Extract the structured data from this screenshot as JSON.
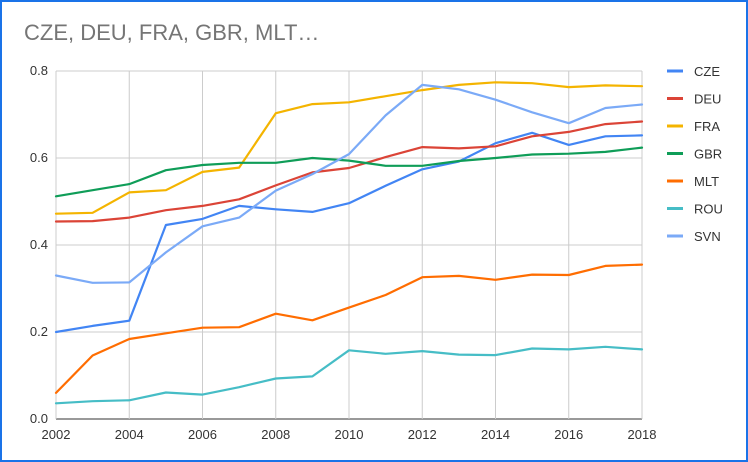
{
  "chart_data": {
    "type": "line",
    "title": "CZE, DEU, FRA, GBR, MLT…",
    "xlabel": "",
    "ylabel": "",
    "xlim": [
      2002,
      2018
    ],
    "ylim": [
      0,
      0.8
    ],
    "x_ticks": [
      "2002",
      "2004",
      "2006",
      "2008",
      "2010",
      "2012",
      "2014",
      "2016",
      "2018"
    ],
    "y_ticks": [
      "0.0",
      "0.2",
      "0.4",
      "0.6",
      "0.8"
    ],
    "grid": true,
    "legend_position": "right",
    "x": [
      2002,
      2003,
      2004,
      2005,
      2006,
      2007,
      2008,
      2009,
      2010,
      2011,
      2012,
      2013,
      2014,
      2015,
      2016,
      2017,
      2018
    ],
    "series": [
      {
        "name": "CZE",
        "color": "#4285f4",
        "values": [
          0.2,
          0.214,
          0.226,
          0.446,
          0.46,
          0.49,
          0.482,
          0.476,
          0.496,
          0.536,
          0.574,
          0.592,
          0.634,
          0.658,
          0.63,
          0.65,
          0.652
        ]
      },
      {
        "name": "DEU",
        "color": "#db4437",
        "values": [
          0.454,
          0.455,
          0.463,
          0.48,
          0.49,
          0.505,
          0.537,
          0.567,
          0.577,
          0.602,
          0.625,
          0.622,
          0.627,
          0.65,
          0.66,
          0.678,
          0.684
        ]
      },
      {
        "name": "FRA",
        "color": "#f4b400",
        "values": [
          0.472,
          0.474,
          0.521,
          0.526,
          0.568,
          0.578,
          0.703,
          0.724,
          0.728,
          0.742,
          0.756,
          0.768,
          0.774,
          0.772,
          0.763,
          0.767,
          0.765
        ]
      },
      {
        "name": "GBR",
        "color": "#0f9d58",
        "values": [
          0.512,
          0.526,
          0.54,
          0.572,
          0.584,
          0.589,
          0.589,
          0.6,
          0.594,
          0.582,
          0.582,
          0.593,
          0.6,
          0.608,
          0.61,
          0.614,
          0.624
        ]
      },
      {
        "name": "MLT",
        "color": "#ff6d01",
        "values": [
          0.06,
          0.146,
          0.184,
          0.197,
          0.21,
          0.211,
          0.242,
          0.227,
          0.256,
          0.285,
          0.326,
          0.329,
          0.32,
          0.332,
          0.331,
          0.352,
          0.355
        ]
      },
      {
        "name": "ROU",
        "color": "#46bdc6",
        "values": [
          0.036,
          0.041,
          0.043,
          0.061,
          0.056,
          0.073,
          0.093,
          0.098,
          0.158,
          0.15,
          0.156,
          0.148,
          0.147,
          0.162,
          0.16,
          0.166,
          0.16
        ]
      },
      {
        "name": "SVN",
        "color": "#7baaf7",
        "values": [
          0.33,
          0.313,
          0.314,
          0.383,
          0.443,
          0.463,
          0.525,
          0.563,
          0.609,
          0.698,
          0.768,
          0.758,
          0.734,
          0.705,
          0.68,
          0.715,
          0.723
        ]
      }
    ]
  }
}
